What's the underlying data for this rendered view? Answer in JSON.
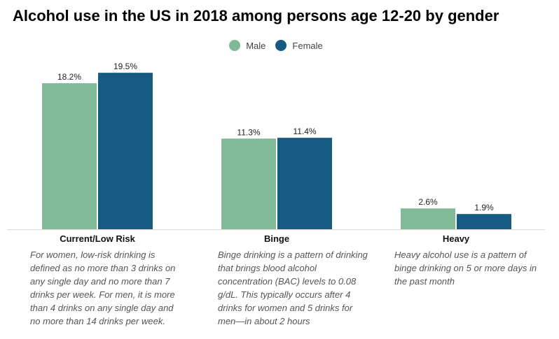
{
  "title": "Alcohol use in the US in 2018 among persons age 12-20 by gender",
  "colors": {
    "Male": "#7fb996",
    "Female": "#165b82"
  },
  "chart_data": {
    "type": "bar",
    "title": "Alcohol use in the US in 2018 among persons age 12-20 by gender",
    "categories": [
      "Current/Low Risk",
      "Binge",
      "Heavy"
    ],
    "series": [
      {
        "name": "Male",
        "values": [
          18.2,
          11.3,
          2.6
        ],
        "labels": [
          "18.2%",
          "11.3%",
          "2.6%"
        ]
      },
      {
        "name": "Female",
        "values": [
          19.5,
          11.4,
          1.9
        ],
        "labels": [
          "19.5%",
          "11.4%",
          "1.9%"
        ]
      }
    ],
    "unit": "%",
    "legend": "top-center",
    "grid": false,
    "ylim": [
      0,
      20
    ]
  },
  "descriptions": [
    "For women, low-risk drinking is defined as no more than 3 drinks on any single day and no more than 7 drinks per week. For men, it is more than 4 drinks on any single day and no more than 14 drinks per week.",
    "Binge drinking is a pattern of drinking that brings blood alcohol concentration (BAC) levels to 0.08 g/dL. This typically occurs after 4 drinks for women and 5 drinks for men—in about 2 hours",
    "Heavy alcohol use is a pattern of binge drinking on 5 or more days in the past month"
  ]
}
